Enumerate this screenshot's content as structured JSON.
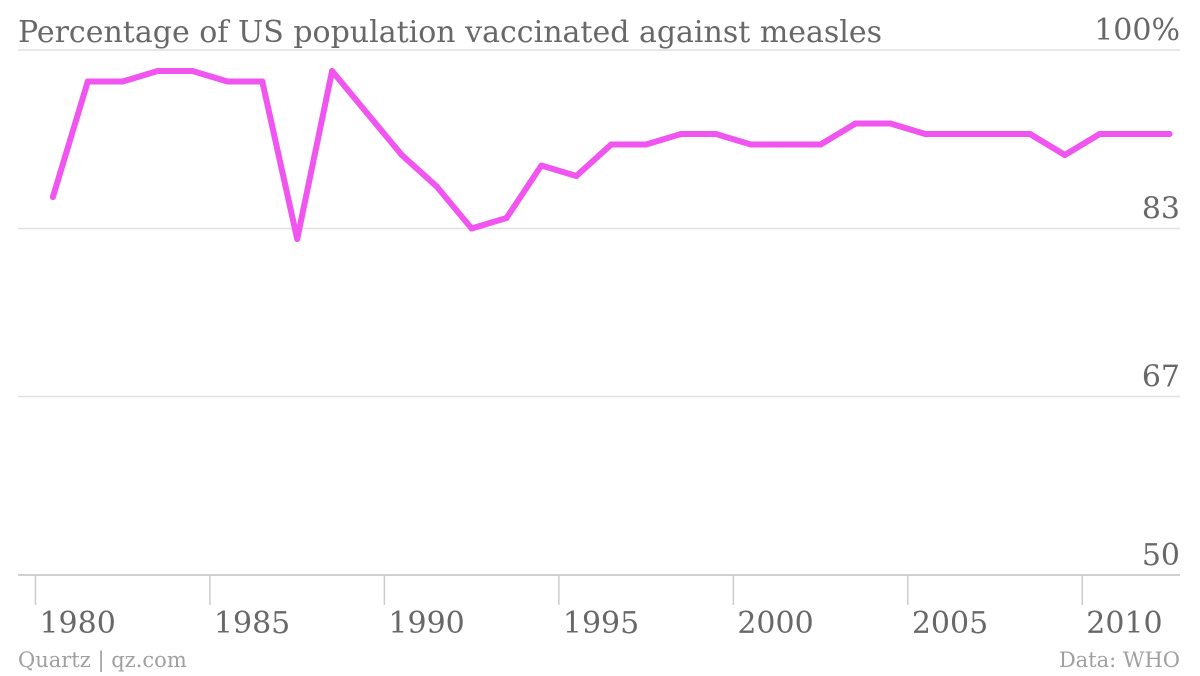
{
  "chart_data": {
    "type": "line",
    "title": "Percentage of US population vaccinated against measles",
    "x": [
      1980,
      1981,
      1982,
      1983,
      1984,
      1985,
      1986,
      1987,
      1988,
      1989,
      1990,
      1991,
      1992,
      1993,
      1994,
      1995,
      1996,
      1997,
      1998,
      1999,
      2000,
      2001,
      2002,
      2003,
      2004,
      2005,
      2006,
      2007,
      2008,
      2009,
      2010,
      2011,
      2012
    ],
    "series": [
      {
        "values": [
          86,
          97,
          97,
          98,
          98,
          97,
          97,
          82,
          98,
          94,
          90,
          87,
          83,
          84,
          89,
          88,
          91,
          91,
          92,
          92,
          91,
          91,
          91,
          93,
          93,
          92,
          92,
          92,
          92,
          90,
          92,
          92,
          92
        ],
        "color": "#f055f0"
      }
    ],
    "ylim": [
      50,
      100
    ],
    "yticks": [
      {
        "value": 100,
        "label": "100%"
      },
      {
        "value": 83,
        "label": "83"
      },
      {
        "value": 67,
        "label": "67"
      },
      {
        "value": 50,
        "label": "50"
      }
    ],
    "xticks": [
      {
        "value": 1980,
        "label": "1980"
      },
      {
        "value": 1985,
        "label": "1985"
      },
      {
        "value": 1990,
        "label": "1990"
      },
      {
        "value": 1995,
        "label": "1995"
      },
      {
        "value": 2000,
        "label": "2000"
      },
      {
        "value": 2005,
        "label": "2005"
      },
      {
        "value": 2010,
        "label": "2010"
      }
    ],
    "grid": true
  },
  "footer": {
    "source_left": "Quartz | qz.com",
    "source_right": "Data: WHO"
  }
}
